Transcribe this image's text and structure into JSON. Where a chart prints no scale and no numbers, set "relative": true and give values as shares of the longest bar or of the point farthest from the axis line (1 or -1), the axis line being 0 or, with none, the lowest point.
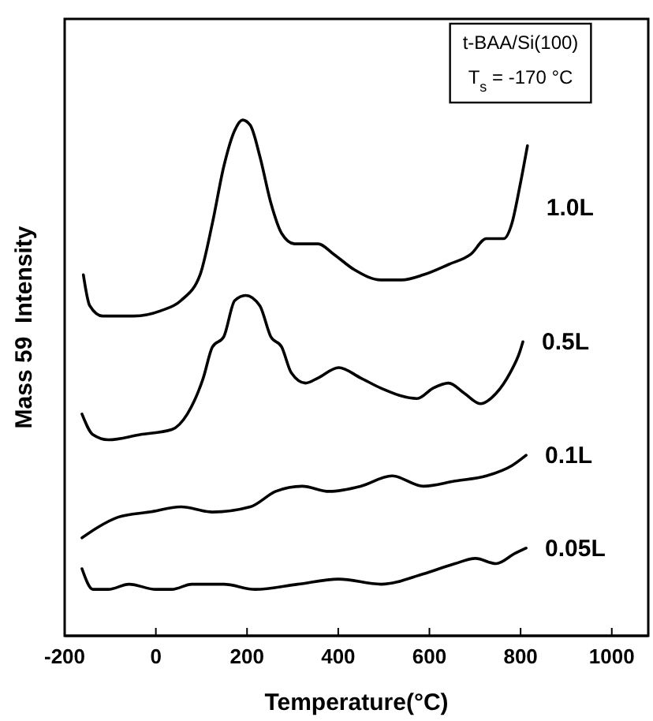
{
  "chart_data": {
    "type": "line",
    "relative": true,
    "xlabel": "Temperature(°C)",
    "ylabel": "Mass 59  Intensity",
    "xlim": [
      -200,
      1080
    ],
    "xticks": [
      -200,
      0,
      200,
      400,
      600,
      800,
      1000
    ],
    "grid": false,
    "line_style": "solid",
    "marker": "none",
    "annotations": [
      "t-BAA/Si(100)",
      "T$_{s}$ = -170 °C"
    ],
    "series": [
      {
        "name": "1.0L",
        "color": "#000000",
        "x": [
          -159,
          -145,
          -117,
          -48,
          10,
          55,
          97,
          124,
          149,
          173,
          190,
          207,
          228,
          252,
          276,
          304,
          356,
          390,
          435,
          494,
          539,
          587,
          642,
          691,
          725,
          763,
          781,
          798,
          815
        ],
        "values": [
          0.7,
          0.64,
          0.62,
          0.62,
          0.63,
          0.65,
          0.7,
          0.8,
          0.91,
          0.98,
          1.0,
          0.99,
          0.93,
          0.84,
          0.78,
          0.76,
          0.76,
          0.74,
          0.71,
          0.69,
          0.69,
          0.7,
          0.72,
          0.74,
          0.77,
          0.77,
          0.8,
          0.87,
          0.95
        ]
      },
      {
        "name": "0.5L",
        "color": "#000000",
        "x": [
          -162,
          -138,
          -104,
          -35,
          35,
          69,
          104,
          124,
          149,
          173,
          197,
          228,
          252,
          276,
          297,
          328,
          356,
          401,
          449,
          494,
          573,
          608,
          642,
          677,
          712,
          746,
          777,
          798,
          805
        ],
        "values": [
          0.43,
          0.39,
          0.38,
          0.39,
          0.4,
          0.43,
          0.5,
          0.56,
          0.58,
          0.65,
          0.66,
          0.64,
          0.58,
          0.56,
          0.51,
          0.49,
          0.5,
          0.52,
          0.5,
          0.48,
          0.46,
          0.48,
          0.49,
          0.47,
          0.45,
          0.47,
          0.51,
          0.55,
          0.57
        ]
      },
      {
        "name": "0.1L",
        "color": "#000000",
        "x": [
          -162,
          -128,
          -83,
          -14,
          55,
          124,
          207,
          263,
          321,
          380,
          449,
          518,
          587,
          656,
          725,
          781,
          812
        ],
        "values": [
          0.19,
          0.21,
          0.23,
          0.24,
          0.25,
          0.24,
          0.25,
          0.28,
          0.29,
          0.28,
          0.29,
          0.31,
          0.29,
          0.3,
          0.31,
          0.33,
          0.35
        ]
      },
      {
        "name": "0.05L",
        "color": "#000000",
        "x": [
          -162,
          -138,
          -104,
          -59,
          0,
          35,
          79,
          149,
          218,
          311,
          401,
          494,
          587,
          656,
          701,
          746,
          788,
          812
        ],
        "values": [
          0.13,
          0.09,
          0.09,
          0.1,
          0.09,
          0.09,
          0.1,
          0.1,
          0.09,
          0.1,
          0.11,
          0.1,
          0.12,
          0.14,
          0.15,
          0.14,
          0.16,
          0.17
        ]
      }
    ]
  }
}
